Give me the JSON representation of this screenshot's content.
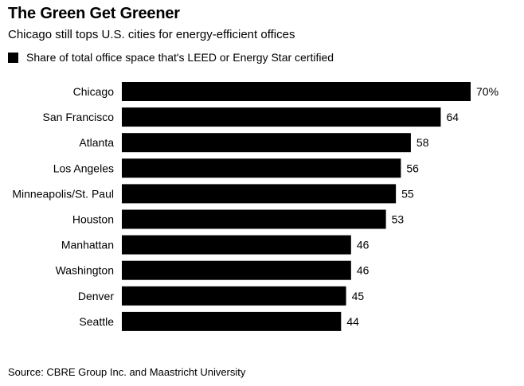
{
  "header": {
    "title": "The Green Get Greener",
    "subtitle": "Chicago still tops U.S. cities for energy-efficient offices"
  },
  "legend": {
    "label": "Share of total office space that's LEED or Energy Star certified",
    "color": "#000000"
  },
  "chart_data": {
    "type": "bar",
    "orientation": "horizontal",
    "categories": [
      "Chicago",
      "San Francisco",
      "Atlanta",
      "Los Angeles",
      "Minneapolis/St. Paul",
      "Houston",
      "Manhattan",
      "Washington",
      "Denver",
      "Seattle"
    ],
    "series": [
      {
        "name": "Share of total office space that's LEED or Energy Star certified",
        "values": [
          70,
          64,
          58,
          56,
          55,
          53,
          46,
          46,
          45,
          44
        ],
        "labels": [
          "70%",
          "64",
          "58",
          "56",
          "55",
          "53",
          "46",
          "46",
          "45",
          "44"
        ]
      }
    ],
    "xlim": [
      0,
      70
    ],
    "grid": false,
    "legend_position": "top-left",
    "bar_color": "#000000"
  },
  "footer": {
    "source": "Source: CBRE Group Inc. and Maastricht University"
  }
}
